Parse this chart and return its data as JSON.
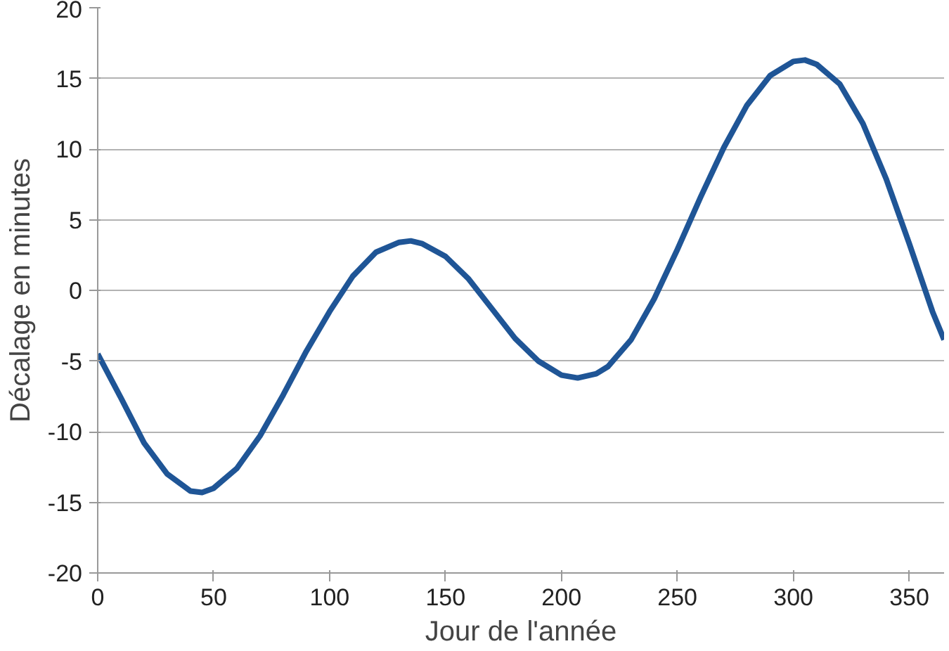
{
  "chart_data": {
    "type": "line",
    "xlabel": "Jour de l'année",
    "ylabel": "Décalage en minutes",
    "x": [
      0,
      10,
      20,
      30,
      40,
      45,
      50,
      60,
      70,
      80,
      90,
      100,
      110,
      120,
      130,
      135,
      140,
      150,
      160,
      170,
      180,
      190,
      200,
      207,
      215,
      220,
      230,
      240,
      250,
      260,
      270,
      280,
      290,
      300,
      305,
      310,
      320,
      330,
      340,
      350,
      360,
      365
    ],
    "series": [
      {
        "color": "#1f5596",
        "values": [
          -4.5,
          -7.6,
          -10.8,
          -13.0,
          -14.2,
          -14.3,
          -14.0,
          -12.6,
          -10.3,
          -7.4,
          -4.3,
          -1.5,
          1.0,
          2.7,
          3.4,
          3.5,
          3.3,
          2.4,
          0.8,
          -1.3,
          -3.4,
          -5.0,
          -6.0,
          -6.2,
          -5.9,
          -5.4,
          -3.5,
          -0.6,
          2.9,
          6.6,
          10.1,
          13.1,
          15.2,
          16.2,
          16.3,
          16.0,
          14.6,
          11.8,
          7.9,
          3.3,
          -1.5,
          -3.5
        ]
      }
    ],
    "xlim": [
      0,
      365
    ],
    "ylim": [
      -20,
      20
    ],
    "xticks": [
      0,
      50,
      100,
      150,
      200,
      250,
      300,
      350
    ],
    "yticks": [
      -20,
      -15,
      -10,
      -5,
      0,
      5,
      10,
      15,
      20
    ],
    "grid": "y",
    "marker": "none",
    "line_style": "solid"
  }
}
